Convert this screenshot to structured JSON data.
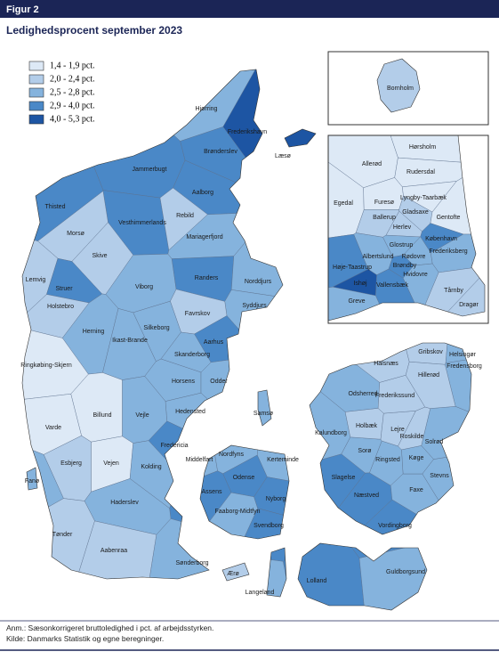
{
  "header": {
    "figure": "Figur 2",
    "title": "Ledighedsprocent september 2023"
  },
  "legend": [
    "1,4 - 1,9 pct.",
    "2,0 - 2,4 pct.",
    "2,5 - 2,8 pct.",
    "2,9 - 4,0 pct.",
    "4,0 - 5,3 pct."
  ],
  "municipalities": [
    {
      "name": "Hjørring",
      "class": 2
    },
    {
      "name": "Frederikshavn",
      "class": 4
    },
    {
      "name": "Læsø",
      "class": 4
    },
    {
      "name": "Brønderslev",
      "class": 3
    },
    {
      "name": "Jammerbugt",
      "class": 3
    },
    {
      "name": "Aalborg",
      "class": 3
    },
    {
      "name": "Thisted",
      "class": 3
    },
    {
      "name": "Vesthimmerlands",
      "class": 3
    },
    {
      "name": "Rebild",
      "class": 1
    },
    {
      "name": "Morsø",
      "class": 1
    },
    {
      "name": "Mariagerfjord",
      "class": 2
    },
    {
      "name": "Skive",
      "class": 1
    },
    {
      "name": "Lemvig",
      "class": 1
    },
    {
      "name": "Struer",
      "class": 3
    },
    {
      "name": "Holstebro",
      "class": 1
    },
    {
      "name": "Viborg",
      "class": 2
    },
    {
      "name": "Randers",
      "class": 3
    },
    {
      "name": "Norddjurs",
      "class": 2
    },
    {
      "name": "Syddjurs",
      "class": 2
    },
    {
      "name": "Favrskov",
      "class": 1
    },
    {
      "name": "Silkeborg",
      "class": 2
    },
    {
      "name": "Herning",
      "class": 2
    },
    {
      "name": "Ikast-Brande",
      "class": 2
    },
    {
      "name": "Ringkøbing-Skjern",
      "class": 0
    },
    {
      "name": "Skanderborg",
      "class": 2
    },
    {
      "name": "Aarhus",
      "class": 3
    },
    {
      "name": "Horsens",
      "class": 2
    },
    {
      "name": "Odder",
      "class": 2
    },
    {
      "name": "Hedensted",
      "class": 2
    },
    {
      "name": "Samsø",
      "class": 2
    },
    {
      "name": "Billund",
      "class": 0
    },
    {
      "name": "Vejle",
      "class": 2
    },
    {
      "name": "Varde",
      "class": 0
    },
    {
      "name": "Fredericia",
      "class": 3
    },
    {
      "name": "Esbjerg",
      "class": 1
    },
    {
      "name": "Vejen",
      "class": 0
    },
    {
      "name": "Kolding",
      "class": 2
    },
    {
      "name": "Fanø",
      "class": 2
    },
    {
      "name": "Middelfart",
      "class": 2
    },
    {
      "name": "Nordfyns",
      "class": 2
    },
    {
      "name": "Kerteminde",
      "class": 2
    },
    {
      "name": "Odense",
      "class": 3
    },
    {
      "name": "Assens",
      "class": 3
    },
    {
      "name": "Haderslev",
      "class": 2
    },
    {
      "name": "Faaborg-Midtfyn",
      "class": 2
    },
    {
      "name": "Nyborg",
      "class": 3
    },
    {
      "name": "Svendborg",
      "class": 3
    },
    {
      "name": "Tønder",
      "class": 1
    },
    {
      "name": "Aabenraa",
      "class": 1
    },
    {
      "name": "Sønderborg",
      "class": 2
    },
    {
      "name": "Ærø",
      "class": 1
    },
    {
      "name": "Langeland",
      "class": 2
    },
    {
      "name": "Lolland",
      "class": 3
    },
    {
      "name": "Guldborgsund",
      "class": 2
    },
    {
      "name": "Vordingborg",
      "class": 3
    },
    {
      "name": "Næstved",
      "class": 3
    },
    {
      "name": "Faxe",
      "class": 2
    },
    {
      "name": "Slagelse",
      "class": 3
    },
    {
      "name": "Stevns",
      "class": 2
    },
    {
      "name": "Køge",
      "class": 2
    },
    {
      "name": "Ringsted",
      "class": 2
    },
    {
      "name": "Sorø",
      "class": 2
    },
    {
      "name": "Kalundborg",
      "class": 2
    },
    {
      "name": "Holbæk",
      "class": 1
    },
    {
      "name": "Odsherred",
      "class": 2
    },
    {
      "name": "Lejre",
      "class": 1
    },
    {
      "name": "Roskilde",
      "class": 1
    },
    {
      "name": "Solrød",
      "class": 2
    },
    {
      "name": "Frederikssund",
      "class": 1
    },
    {
      "name": "Halsnæs",
      "class": 1
    },
    {
      "name": "Gribskov",
      "class": 1
    },
    {
      "name": "Helsingør",
      "class": 2
    },
    {
      "name": "Fredensborg",
      "class": 2
    },
    {
      "name": "Hillerød",
      "class": 1
    },
    {
      "name": "Bornholm",
      "class": 1
    },
    {
      "name": "Hørsholm",
      "class": 0
    },
    {
      "name": "Allerød",
      "class": 0
    },
    {
      "name": "Rudersdal",
      "class": 0
    },
    {
      "name": "Egedal",
      "class": 0
    },
    {
      "name": "Furesø",
      "class": 0
    },
    {
      "name": "Lyngby-Taarbæk",
      "class": 0
    },
    {
      "name": "Ballerup",
      "class": 1
    },
    {
      "name": "Gladsaxe",
      "class": 1
    },
    {
      "name": "Gentofte",
      "class": 0
    },
    {
      "name": "Herlev",
      "class": 1
    },
    {
      "name": "Glostrup",
      "class": 2
    },
    {
      "name": "København",
      "class": 3
    },
    {
      "name": "Albertslund",
      "class": 2
    },
    {
      "name": "Rødovre",
      "class": 2
    },
    {
      "name": "Frederiksberg",
      "class": 2
    },
    {
      "name": "Høje-Taastrup",
      "class": 3
    },
    {
      "name": "Brøndby",
      "class": 3
    },
    {
      "name": "Hvidovre",
      "class": 2
    },
    {
      "name": "Ishøj",
      "class": 4
    },
    {
      "name": "Vallensbæk",
      "class": 3
    },
    {
      "name": "Tårnby",
      "class": 1
    },
    {
      "name": "Greve",
      "class": 2
    },
    {
      "name": "Dragør",
      "class": 1
    }
  ],
  "notes": [
    "Anm.: Sæsonkorrigeret bruttoledighed i pct. af arbejdsstyrken.",
    "Kilde: Danmarks Statistik og egne beregninger."
  ]
}
